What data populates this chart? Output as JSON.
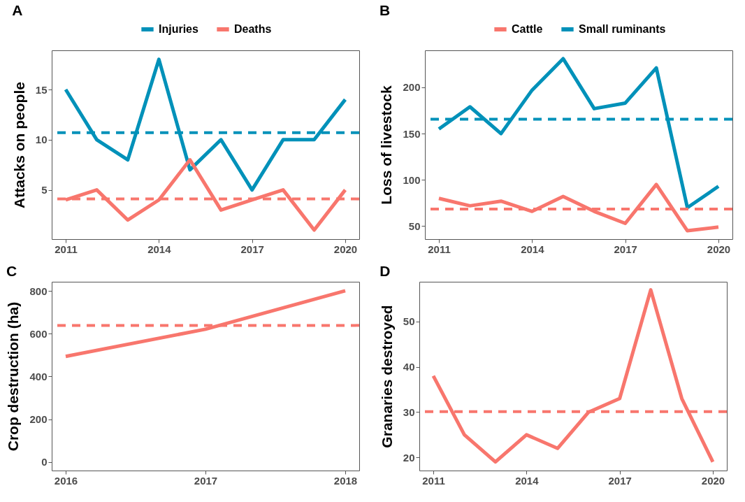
{
  "chart_data": [
    {
      "type": "line",
      "title": "A",
      "ylabel": "Attacks on people",
      "x": [
        2011,
        2012,
        2013,
        2014,
        2015,
        2016,
        2017,
        2018,
        2019,
        2020
      ],
      "xlim": [
        2010.55,
        2020.45
      ],
      "xticks": [
        2011,
        2014,
        2017,
        2020
      ],
      "ylim": [
        0.1,
        18.9
      ],
      "yticks": [
        5,
        10,
        15
      ],
      "grid": false,
      "legend": "top",
      "series": [
        {
          "name": "Injuries",
          "color": "#0091b9",
          "values": [
            15,
            10,
            8,
            18,
            7,
            10,
            5,
            10,
            10,
            14
          ]
        },
        {
          "name": "Deaths",
          "color": "#f8766d",
          "values": [
            4,
            5,
            2,
            4,
            8,
            3,
            4,
            5,
            1,
            5
          ]
        }
      ],
      "ref_lines": [
        {
          "axis": "y",
          "value": 10.7,
          "color": "#0091b9",
          "line_style": "dashed"
        },
        {
          "axis": "y",
          "value": 4.1,
          "color": "#f8766d",
          "line_style": "dashed"
        }
      ]
    },
    {
      "type": "line",
      "title": "B",
      "ylabel": "Loss of livestock",
      "x": [
        2011,
        2012,
        2013,
        2014,
        2015,
        2016,
        2017,
        2018,
        2019,
        2020
      ],
      "xlim": [
        2010.55,
        2020.45
      ],
      "xticks": [
        2011,
        2014,
        2017,
        2020
      ],
      "ylim": [
        36,
        240
      ],
      "yticks": [
        50,
        100,
        150,
        200
      ],
      "grid": false,
      "legend": "top",
      "series": [
        {
          "name": "Cattle",
          "color": "#f8766d",
          "values": [
            80,
            72,
            77,
            66,
            82,
            66,
            53,
            95,
            45,
            49
          ]
        },
        {
          "name": "Small ruminants",
          "color": "#0091b9",
          "values": [
            155,
            179,
            150,
            197,
            231,
            177,
            183,
            221,
            70,
            93
          ]
        }
      ],
      "ref_lines": [
        {
          "axis": "y",
          "value": 165.6,
          "color": "#0091b9",
          "line_style": "dashed"
        },
        {
          "axis": "y",
          "value": 68.5,
          "color": "#f8766d",
          "line_style": "dashed"
        }
      ]
    },
    {
      "type": "line",
      "title": "C",
      "ylabel": "Crop destruction (ha)",
      "x": [
        2016,
        2017,
        2018
      ],
      "xlim": [
        2015.9,
        2018.1
      ],
      "xticks": [
        2016,
        2017,
        2018
      ],
      "ylim": [
        -40,
        843
      ],
      "yticks": [
        0,
        200,
        400,
        600,
        800
      ],
      "grid": false,
      "series": [
        {
          "color": "#f8766d",
          "values": [
            494,
            621,
            801
          ]
        }
      ],
      "ref_lines": [
        {
          "axis": "y",
          "value": 639,
          "color": "#f8766d",
          "line_style": "dashed"
        }
      ]
    },
    {
      "type": "line",
      "title": "D",
      "ylabel": "Granaries destroyed",
      "x": [
        2011,
        2012,
        2013,
        2014,
        2015,
        2016,
        2017,
        2018,
        2019,
        2020
      ],
      "xlim": [
        2010.55,
        2020.45
      ],
      "xticks": [
        2011,
        2014,
        2017,
        2020
      ],
      "ylim": [
        17.1,
        58.8
      ],
      "yticks": [
        20,
        30,
        40,
        50
      ],
      "grid": false,
      "series": [
        {
          "color": "#f8766d",
          "values": [
            38,
            25,
            19,
            25,
            22,
            30,
            33,
            57,
            33,
            19
          ]
        }
      ],
      "ref_lines": [
        {
          "axis": "y",
          "value": 30.1,
          "color": "#f8766d",
          "line_style": "dashed"
        }
      ]
    }
  ]
}
